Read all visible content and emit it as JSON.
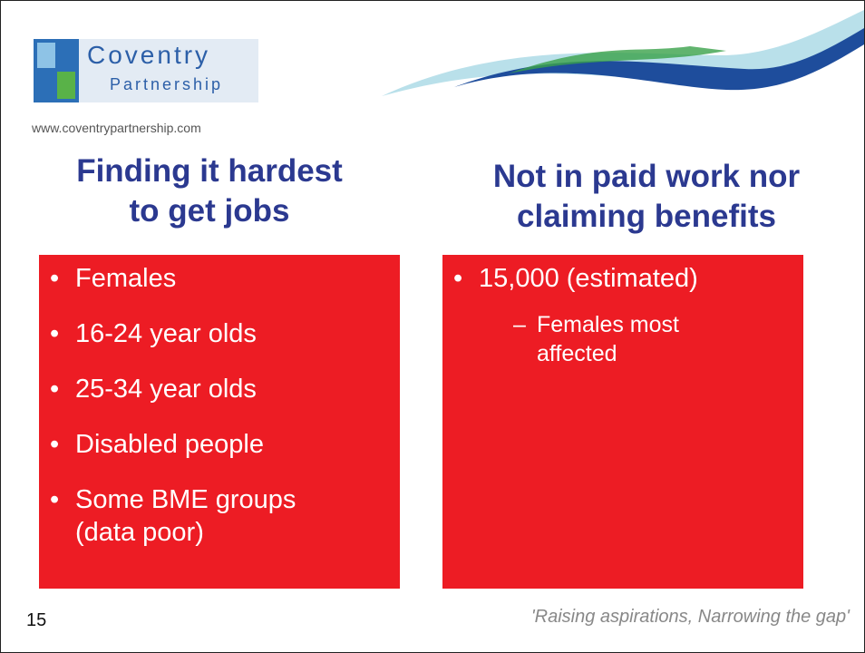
{
  "logo": {
    "name": "Coventry",
    "subname": "Partnership",
    "url": "www.coventrypartnership.com"
  },
  "columns": [
    {
      "heading": [
        "Finding it hardest",
        "to get jobs"
      ],
      "items": [
        [
          "Females"
        ],
        [
          "16-24 year olds"
        ],
        [
          "25-34 year olds"
        ],
        [
          "Disabled people"
        ],
        [
          "Some BME groups",
          "(data poor)"
        ]
      ]
    },
    {
      "heading": [
        "Not in paid work nor",
        "claiming benefits"
      ],
      "items": [
        [
          "15,000 (estimated)"
        ]
      ],
      "subitems": [
        [
          "Females most",
          "affected"
        ]
      ]
    }
  ],
  "footer": {
    "page_number": "15",
    "tagline": "'Raising aspirations, Narrowing the gap'"
  }
}
